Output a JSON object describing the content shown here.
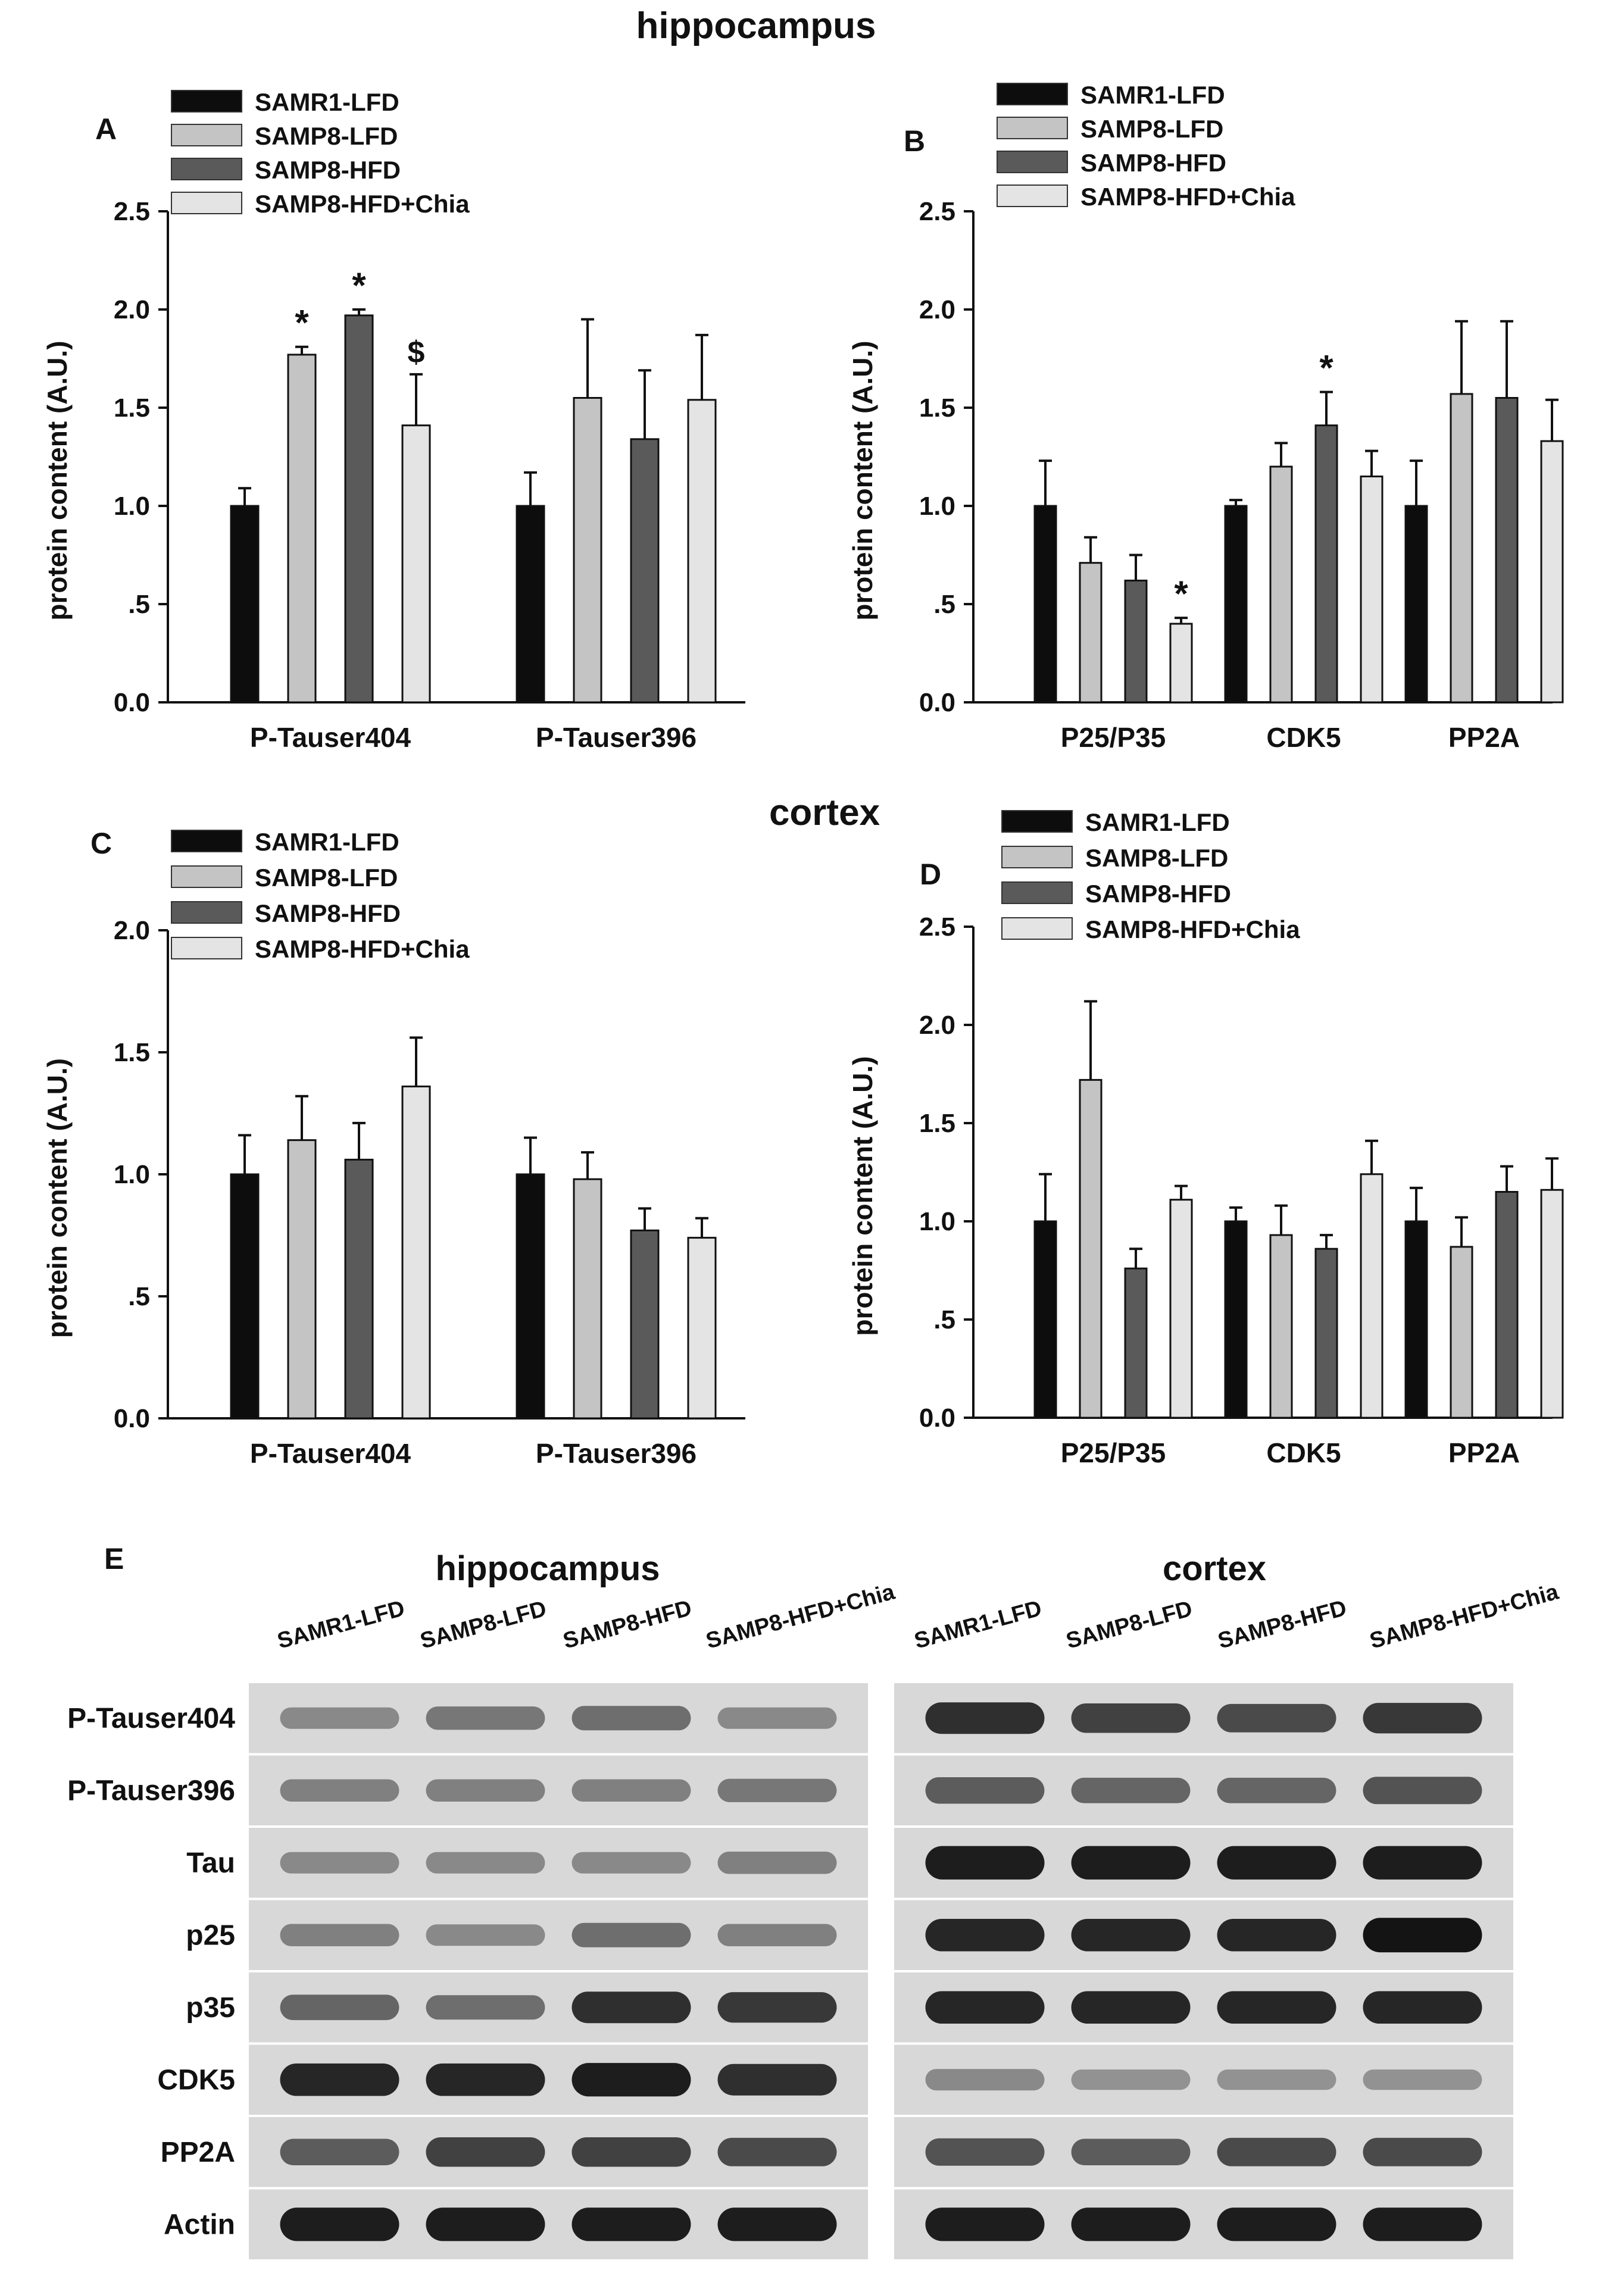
{
  "header": {
    "hippocampus_title": "hippocampus",
    "cortex_title": "cortex"
  },
  "legend": {
    "entries": [
      "SAMR1-LFD",
      "SAMP8-LFD",
      "SAMP8-HFD",
      "SAMP8-HFD+Chia"
    ],
    "colors": [
      "#0d0d0d",
      "#c4c4c4",
      "#5a5a5a",
      "#e4e4e4"
    ]
  },
  "chart_data": [
    {
      "panel": "A",
      "type": "bar",
      "ylabel": "protein content (A.U.)",
      "ylim": [
        0,
        2.5
      ],
      "yticks": [
        "0.0",
        ".5",
        "1.0",
        "1.5",
        "2.0",
        "2.5"
      ],
      "categories": [
        "P-Tauser404",
        "P-Tauser396"
      ],
      "series": [
        {
          "name": "SAMR1-LFD",
          "values": [
            1.0,
            1.0
          ],
          "errors": [
            0.09,
            0.17
          ]
        },
        {
          "name": "SAMP8-LFD",
          "values": [
            1.77,
            1.55
          ],
          "errors": [
            0.04,
            0.4
          ]
        },
        {
          "name": "SAMP8-HFD",
          "values": [
            1.97,
            1.34
          ],
          "errors": [
            0.03,
            0.35
          ]
        },
        {
          "name": "SAMP8-HFD+Chia",
          "values": [
            1.41,
            1.54
          ],
          "errors": [
            0.26,
            0.33
          ]
        }
      ],
      "annotations": [
        {
          "category": 0,
          "series": 1,
          "text": "*"
        },
        {
          "category": 0,
          "series": 2,
          "text": "*"
        },
        {
          "category": 0,
          "series": 3,
          "text": "$"
        }
      ],
      "legend_position": "top-left"
    },
    {
      "panel": "B",
      "type": "bar",
      "ylabel": "protein content (A.U.)",
      "ylim": [
        0,
        2.5
      ],
      "yticks": [
        "0.0",
        ".5",
        "1.0",
        "1.5",
        "2.0",
        "2.5"
      ],
      "categories": [
        "P25/P35",
        "CDK5",
        "PP2A"
      ],
      "series": [
        {
          "name": "SAMR1-LFD",
          "values": [
            1.0,
            1.0,
            1.0
          ],
          "errors": [
            0.23,
            0.03,
            0.23
          ]
        },
        {
          "name": "SAMP8-LFD",
          "values": [
            0.71,
            1.2,
            1.57
          ],
          "errors": [
            0.13,
            0.12,
            0.37
          ]
        },
        {
          "name": "SAMP8-HFD",
          "values": [
            0.62,
            1.41,
            1.55
          ],
          "errors": [
            0.13,
            0.17,
            0.39
          ]
        },
        {
          "name": "SAMP8-HFD+Chia",
          "values": [
            0.4,
            1.15,
            1.33
          ],
          "errors": [
            0.03,
            0.13,
            0.21
          ]
        }
      ],
      "annotations": [
        {
          "category": 0,
          "series": 3,
          "text": "*"
        },
        {
          "category": 1,
          "series": 2,
          "text": "*"
        }
      ],
      "legend_position": "top"
    },
    {
      "panel": "C",
      "type": "bar",
      "ylabel": "protein content (A.U.)",
      "ylim": [
        0,
        2.0
      ],
      "yticks": [
        "0.0",
        ".5",
        "1.0",
        "1.5",
        "2.0"
      ],
      "categories": [
        "P-Tauser404",
        "P-Tauser396"
      ],
      "series": [
        {
          "name": "SAMR1-LFD",
          "values": [
            1.0,
            1.0
          ],
          "errors": [
            0.16,
            0.15
          ]
        },
        {
          "name": "SAMP8-LFD",
          "values": [
            1.14,
            0.98
          ],
          "errors": [
            0.18,
            0.11
          ]
        },
        {
          "name": "SAMP8-HFD",
          "values": [
            1.06,
            0.77
          ],
          "errors": [
            0.15,
            0.09
          ]
        },
        {
          "name": "SAMP8-HFD+Chia",
          "values": [
            1.36,
            0.74
          ],
          "errors": [
            0.2,
            0.08
          ]
        }
      ],
      "annotations": [],
      "legend_position": "top-left"
    },
    {
      "panel": "D",
      "type": "bar",
      "ylabel": "protein content (A.U.)",
      "ylim": [
        0,
        2.5
      ],
      "yticks": [
        "0.0",
        ".5",
        "1.0",
        "1.5",
        "2.0",
        "2.5"
      ],
      "categories": [
        "P25/P35",
        "CDK5",
        "PP2A"
      ],
      "series": [
        {
          "name": "SAMR1-LFD",
          "values": [
            1.0,
            1.0,
            1.0
          ],
          "errors": [
            0.24,
            0.07,
            0.17
          ]
        },
        {
          "name": "SAMP8-LFD",
          "values": [
            1.72,
            0.93,
            0.87
          ],
          "errors": [
            0.4,
            0.15,
            0.15
          ]
        },
        {
          "name": "SAMP8-HFD",
          "values": [
            0.76,
            0.86,
            1.15
          ],
          "errors": [
            0.1,
            0.07,
            0.13
          ]
        },
        {
          "name": "SAMP8-HFD+Chia",
          "values": [
            1.11,
            1.24,
            1.16
          ],
          "errors": [
            0.07,
            0.17,
            0.16
          ]
        }
      ],
      "annotations": [],
      "legend_position": "top"
    }
  ],
  "western_blot": {
    "panel": "E",
    "regions": [
      "hippocampus",
      "cortex"
    ],
    "lanes": [
      "SAMR1-LFD",
      "SAMP8-LFD",
      "SAMP8-HFD",
      "SAMP8-HFD+Chia"
    ],
    "proteins": [
      {
        "name": "P-Tauser404",
        "hippocampus": [
          0.35,
          0.45,
          0.5,
          0.35
        ],
        "cortex": [
          0.85,
          0.75,
          0.7,
          0.8
        ]
      },
      {
        "name": "P-Tauser396",
        "hippocampus": [
          0.4,
          0.4,
          0.4,
          0.45
        ],
        "cortex": [
          0.6,
          0.55,
          0.55,
          0.65
        ]
      },
      {
        "name": "Tau",
        "hippocampus": [
          0.35,
          0.35,
          0.35,
          0.4
        ],
        "cortex": [
          0.95,
          0.95,
          0.95,
          0.95
        ]
      },
      {
        "name": "p25",
        "hippocampus": [
          0.4,
          0.35,
          0.5,
          0.4
        ],
        "cortex": [
          0.9,
          0.9,
          0.9,
          1.0
        ]
      },
      {
        "name": "p35",
        "hippocampus": [
          0.55,
          0.5,
          0.85,
          0.8
        ],
        "cortex": [
          0.9,
          0.9,
          0.9,
          0.9
        ]
      },
      {
        "name": "CDK5",
        "hippocampus": [
          0.9,
          0.9,
          0.95,
          0.85
        ],
        "cortex": [
          0.35,
          0.3,
          0.3,
          0.3
        ]
      },
      {
        "name": "PP2A",
        "hippocampus": [
          0.6,
          0.75,
          0.75,
          0.7
        ],
        "cortex": [
          0.65,
          0.6,
          0.7,
          0.7
        ]
      },
      {
        "name": "Actin",
        "hippocampus": [
          0.95,
          0.95,
          0.95,
          0.95
        ],
        "cortex": [
          0.95,
          0.95,
          0.95,
          0.95
        ]
      }
    ]
  }
}
